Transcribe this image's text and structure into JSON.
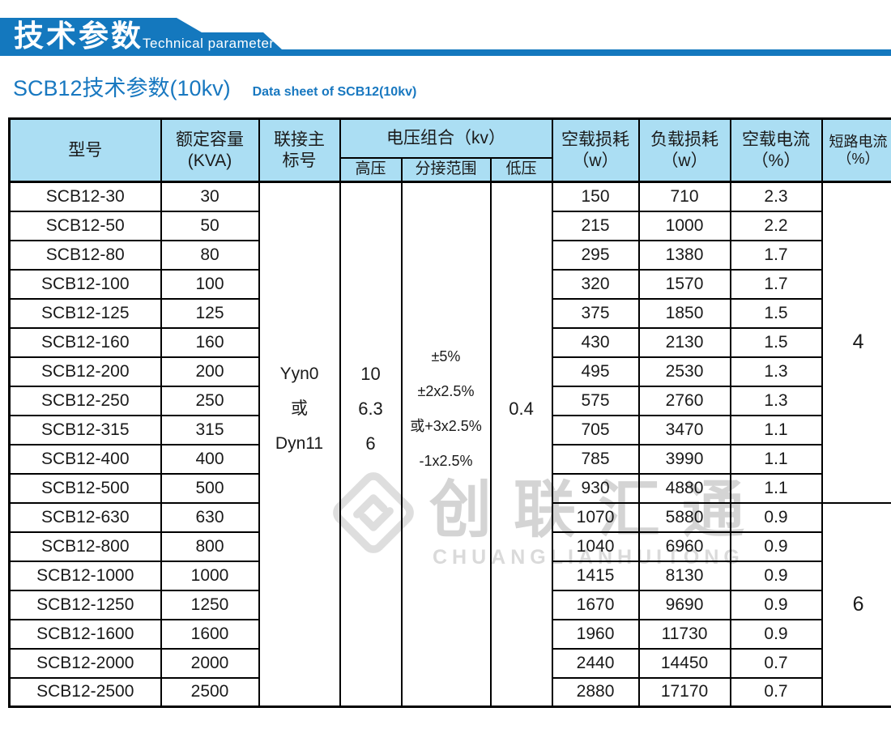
{
  "banner": {
    "title": "技术参数",
    "subtitle": "Technical parameter"
  },
  "page_title": {
    "title": "SCB12技术参数(10kv)",
    "subtitle": "Data sheet of SCB12(10kv)"
  },
  "watermark": {
    "cn": "创联汇通",
    "en": "CHUANGLIANHUITONG"
  },
  "colors": {
    "banner_blue": "#1478BE",
    "title_blue": "#1878C0",
    "header_bg": "#ABDEF3",
    "watermark_gray": "#d4d4d4"
  },
  "table": {
    "header": {
      "model": "型号",
      "capacity": [
        "额定容量",
        "(KVA)"
      ],
      "vector": [
        "联接主",
        "标号"
      ],
      "voltage_group": "电压组合（kv）",
      "hv": "高压",
      "tapping": "分接范围",
      "lv": "低压",
      "no_load_loss": [
        "空载损耗",
        "（w）"
      ],
      "load_loss": [
        "负载损耗",
        "（w）"
      ],
      "no_load_current": [
        "空载电流",
        "（%）"
      ],
      "short_circuit": [
        "短路电流",
        "（%）"
      ]
    },
    "merged": {
      "vector_lines": [
        "Yyn0",
        "或",
        "Dyn11"
      ],
      "hv_lines": [
        "10",
        "6.3",
        "6"
      ],
      "tapping_lines": [
        "±5%",
        "±2x2.5%",
        "或+3x2.5%",
        "-1x2.5%"
      ],
      "lv": "0.4"
    },
    "impedance_groups": [
      {
        "value": "4",
        "start": 0,
        "span": 11
      },
      {
        "value": "6",
        "start": 11,
        "span": 7
      }
    ],
    "rows": [
      {
        "model": "SCB12-30",
        "kva": "30",
        "no_load_loss": "150",
        "load_loss": "710",
        "no_load_current": "2.3"
      },
      {
        "model": "SCB12-50",
        "kva": "50",
        "no_load_loss": "215",
        "load_loss": "1000",
        "no_load_current": "2.2"
      },
      {
        "model": "SCB12-80",
        "kva": "80",
        "no_load_loss": "295",
        "load_loss": "1380",
        "no_load_current": "1.7"
      },
      {
        "model": "SCB12-100",
        "kva": "100",
        "no_load_loss": "320",
        "load_loss": "1570",
        "no_load_current": "1.7"
      },
      {
        "model": "SCB12-125",
        "kva": "125",
        "no_load_loss": "375",
        "load_loss": "1850",
        "no_load_current": "1.5"
      },
      {
        "model": "SCB12-160",
        "kva": "160",
        "no_load_loss": "430",
        "load_loss": "2130",
        "no_load_current": "1.5"
      },
      {
        "model": "SCB12-200",
        "kva": "200",
        "no_load_loss": "495",
        "load_loss": "2530",
        "no_load_current": "1.3"
      },
      {
        "model": "SCB12-250",
        "kva": "250",
        "no_load_loss": "575",
        "load_loss": "2760",
        "no_load_current": "1.3"
      },
      {
        "model": "SCB12-315",
        "kva": "315",
        "no_load_loss": "705",
        "load_loss": "3470",
        "no_load_current": "1.1"
      },
      {
        "model": "SCB12-400",
        "kva": "400",
        "no_load_loss": "785",
        "load_loss": "3990",
        "no_load_current": "1.1"
      },
      {
        "model": "SCB12-500",
        "kva": "500",
        "no_load_loss": "930",
        "load_loss": "4880",
        "no_load_current": "1.1"
      },
      {
        "model": "SCB12-630",
        "kva": "630",
        "no_load_loss": "1070",
        "load_loss": "5880",
        "no_load_current": "0.9"
      },
      {
        "model": "SCB12-800",
        "kva": "800",
        "no_load_loss": "1040",
        "load_loss": "6960",
        "no_load_current": "0.9"
      },
      {
        "model": "SCB12-1000",
        "kva": "1000",
        "no_load_loss": "1415",
        "load_loss": "8130",
        "no_load_current": "0.9"
      },
      {
        "model": "SCB12-1250",
        "kva": "1250",
        "no_load_loss": "1670",
        "load_loss": "9690",
        "no_load_current": "0.9"
      },
      {
        "model": "SCB12-1600",
        "kva": "1600",
        "no_load_loss": "1960",
        "load_loss": "11730",
        "no_load_current": "0.9"
      },
      {
        "model": "SCB12-2000",
        "kva": "2000",
        "no_load_loss": "2440",
        "load_loss": "14450",
        "no_load_current": "0.7"
      },
      {
        "model": "SCB12-2500",
        "kva": "2500",
        "no_load_loss": "2880",
        "load_loss": "17170",
        "no_load_current": "0.7"
      }
    ]
  }
}
